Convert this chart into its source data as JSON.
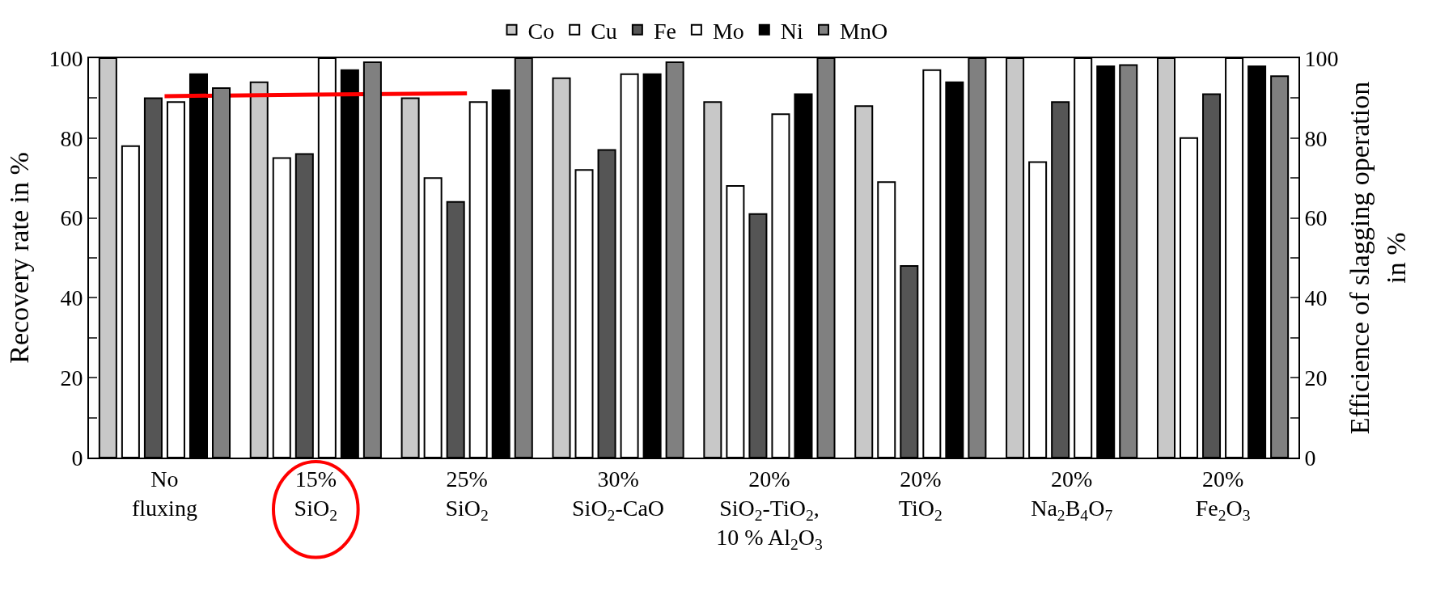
{
  "chart_data": {
    "type": "bar",
    "ylabel": "Recovery rate in %",
    "y2label": "Efficience of slagging operation\nin %",
    "categories": [
      "No\nfluxing",
      "15%\nSiO$_{2}$",
      "25%\nSiO$_{2}$",
      "30%\nSiO$_{2}$-CaO",
      "20%\nSiO$_{2}$-TiO$_{2}$,\n10 % Al$_{2}$O$_{3}$",
      "20%\nTiO$_{2}$",
      "20%\nNa$_{2}$B$_{4}$O$_{7}$",
      "20%\nFe$_{2}$O$_{3}$"
    ],
    "series": [
      {
        "name": "Co",
        "color": "#c8c8c8",
        "values": [
          100,
          94,
          90,
          95,
          89,
          88,
          100,
          100
        ]
      },
      {
        "name": "Cu",
        "color": "#ffffff",
        "values": [
          78,
          75,
          70,
          72,
          68,
          69,
          74,
          80
        ]
      },
      {
        "name": "Fe",
        "color": "#555555",
        "values": [
          90,
          76,
          64,
          77,
          61,
          48,
          89,
          91
        ]
      },
      {
        "name": "Mo",
        "color": "#ffffff",
        "values": [
          89,
          100,
          89,
          96,
          86,
          97,
          100,
          100
        ]
      },
      {
        "name": "Ni",
        "color": "#000000",
        "values": [
          96,
          97,
          92,
          96,
          91,
          94,
          98,
          98
        ]
      },
      {
        "name": "MnO",
        "color": "#808080",
        "axis": "y2",
        "values": [
          92.5,
          99,
          100,
          99,
          100,
          100,
          98.3,
          95.5
        ]
      },
      {
        "type": "line",
        "color": "#ff0000",
        "values": [
          90.5,
          90.9,
          91.2,
          null,
          null,
          null,
          null,
          null
        ]
      }
    ],
    "ylim": [
      0,
      100
    ],
    "yticks": [
      0,
      20,
      40,
      60,
      80,
      100
    ],
    "y2lim": [
      0,
      100
    ],
    "y2ticks": [
      0,
      20,
      40,
      60,
      80,
      100
    ],
    "legend": "top"
  }
}
